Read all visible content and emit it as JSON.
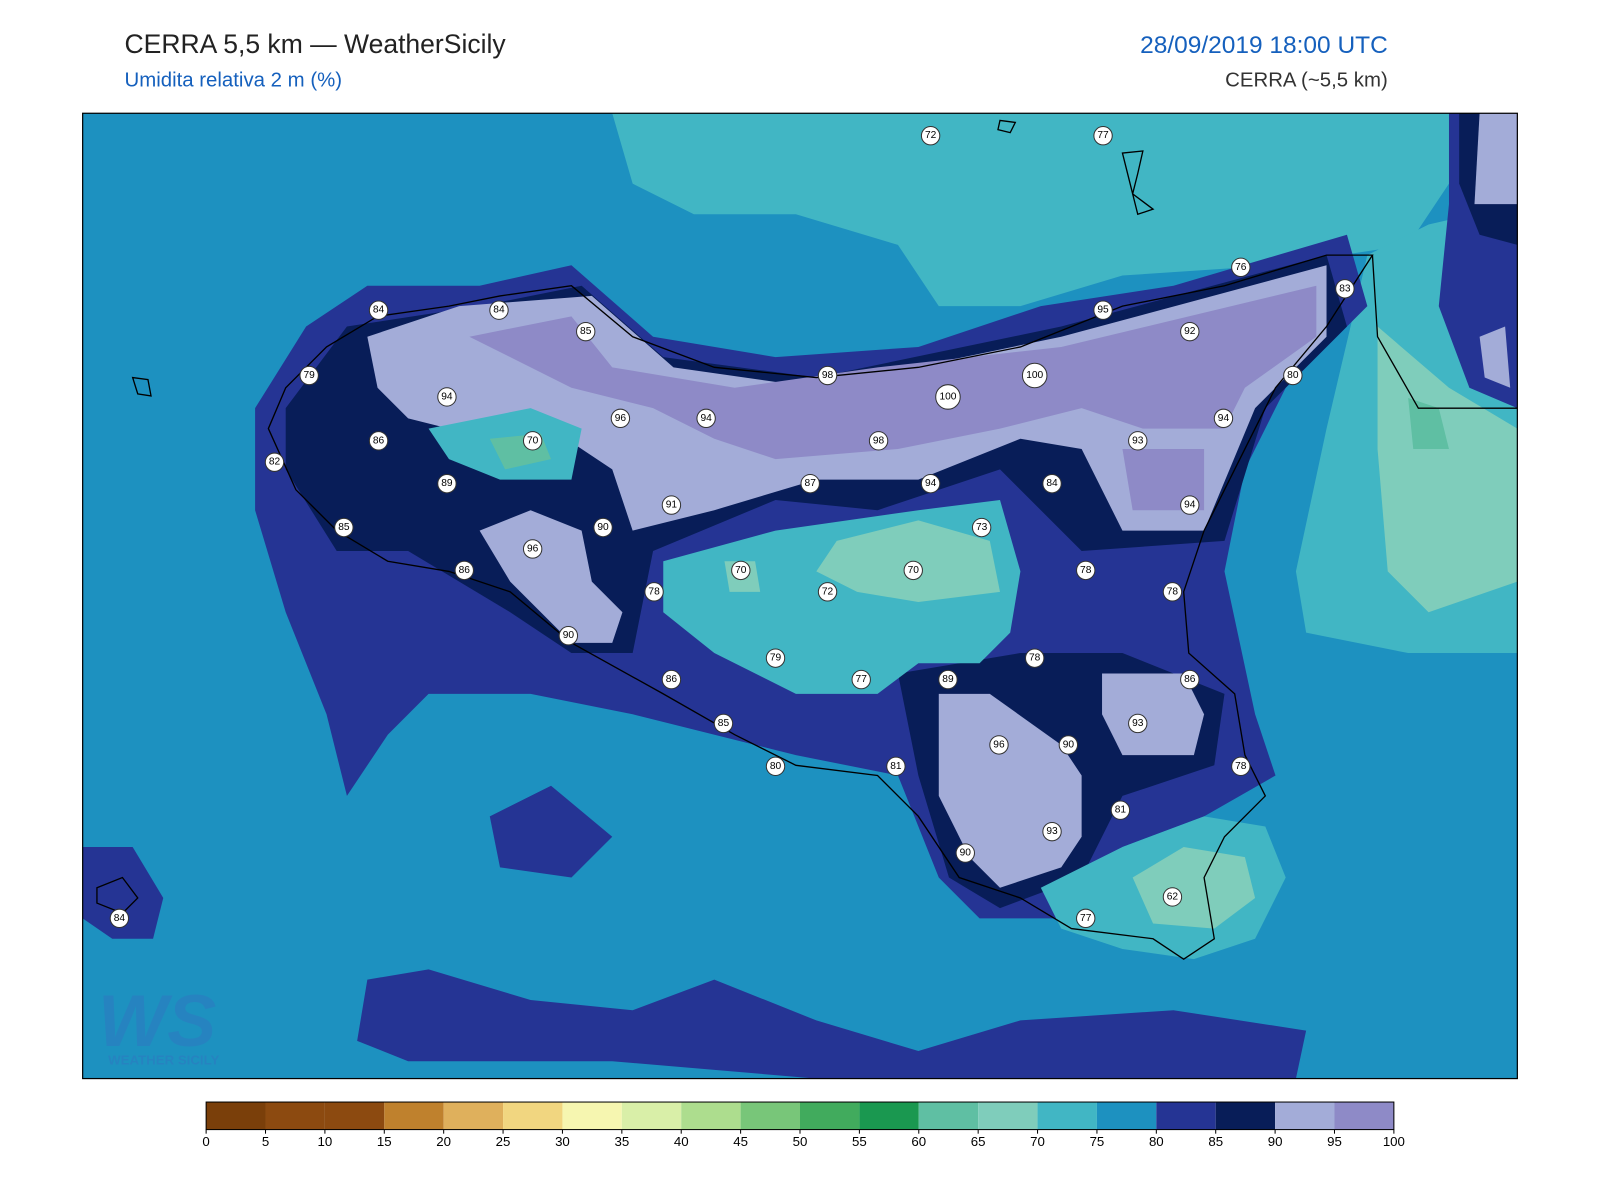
{
  "header": {
    "title": "CERRA 5,5 km — WeatherSicily",
    "subtitle": "Umidita relativa 2 m (%)",
    "datetime": "28/09/2019 18:00 UTC",
    "model": "CERRA (~5,5 km)"
  },
  "logo": {
    "mark": "WS",
    "text": "WEATHER SICILY"
  },
  "colorbar": {
    "levels": [
      0,
      5,
      10,
      15,
      20,
      25,
      30,
      35,
      40,
      45,
      50,
      55,
      60,
      65,
      70,
      75,
      80,
      85,
      90,
      95,
      100
    ],
    "colors": [
      "#7a3f0a",
      "#8c4a10",
      "#8c4a10",
      "#bf812d",
      "#dfb05c",
      "#f1d680",
      "#f6f6b0",
      "#d9efa8",
      "#addd8e",
      "#78c679",
      "#41ab5d",
      "#1a9850",
      "#5fbfa3",
      "#7fcdbb",
      "#41b6c4",
      "#1d91c0",
      "#253494",
      "#081d58",
      "#a3acd8",
      "#8e8ac7"
    ]
  },
  "stations": [
    {
      "value": 72
    },
    {
      "value": 77
    },
    {
      "value": 76
    },
    {
      "value": 83
    },
    {
      "value": 84
    },
    {
      "value": 84
    },
    {
      "value": 85
    },
    {
      "value": 95
    },
    {
      "value": 92
    },
    {
      "value": 79
    },
    {
      "value": 98
    },
    {
      "value": 100
    },
    {
      "value": 100
    },
    {
      "value": 80
    },
    {
      "value": 94
    },
    {
      "value": 96
    },
    {
      "value": 94
    },
    {
      "value": 94
    },
    {
      "value": 86
    },
    {
      "value": 70
    },
    {
      "value": 98
    },
    {
      "value": 93
    },
    {
      "value": 82
    },
    {
      "value": 89
    },
    {
      "value": 87
    },
    {
      "value": 94
    },
    {
      "value": 84
    },
    {
      "value": 91
    },
    {
      "value": 94
    },
    {
      "value": 85
    },
    {
      "value": 90
    },
    {
      "value": 73
    },
    {
      "value": 96
    },
    {
      "value": 86
    },
    {
      "value": 70
    },
    {
      "value": 70
    },
    {
      "value": 78
    },
    {
      "value": 78
    },
    {
      "value": 72
    },
    {
      "value": 78
    },
    {
      "value": 90
    },
    {
      "value": 79
    },
    {
      "value": 78
    },
    {
      "value": 86
    },
    {
      "value": 77
    },
    {
      "value": 89
    },
    {
      "value": 86
    },
    {
      "value": 85
    },
    {
      "value": 93
    },
    {
      "value": 96
    },
    {
      "value": 90
    },
    {
      "value": 80
    },
    {
      "value": 81
    },
    {
      "value": 78
    },
    {
      "value": 81
    },
    {
      "value": 93
    },
    {
      "value": 90
    },
    {
      "value": 62
    },
    {
      "value": 77
    },
    {
      "value": 84
    }
  ]
}
